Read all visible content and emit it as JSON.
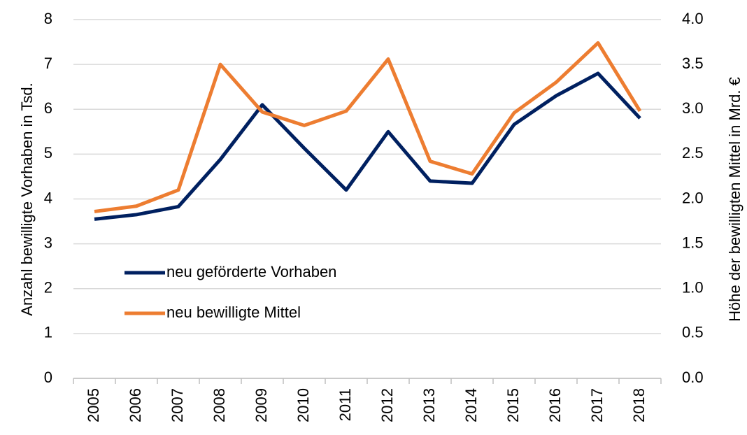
{
  "chart_data": {
    "type": "line",
    "categories": [
      "2005",
      "2006",
      "2007",
      "2008",
      "2009",
      "2010",
      "2011",
      "2012",
      "2013",
      "2014",
      "2015",
      "2016",
      "2017",
      "2018"
    ],
    "series": [
      {
        "name": "neu geförderte Vorhaben",
        "color": "#002060",
        "axis": "y",
        "values": [
          3.55,
          3.65,
          3.83,
          4.88,
          6.1,
          5.13,
          4.2,
          5.5,
          4.4,
          4.35,
          5.66,
          6.3,
          6.8,
          5.8
        ]
      },
      {
        "name": "neu bewilligte Mittel",
        "color": "#ED7D31",
        "axis": "y2",
        "values": [
          1.86,
          1.92,
          2.1,
          3.5,
          2.97,
          2.82,
          2.98,
          3.56,
          2.42,
          2.28,
          2.96,
          3.3,
          3.74,
          2.98
        ]
      }
    ],
    "ylabel": "Anzahl bewilligte Vorhaben in Tsd.",
    "y2label": "Höhe der bewilligten Mittel in Mrd. €",
    "ylim": [
      0,
      8
    ],
    "yticks": [
      0,
      1,
      2,
      3,
      4,
      5,
      6,
      7,
      8
    ],
    "y2lim": [
      0,
      4
    ],
    "y2ticks": [
      {
        "value": 0,
        "label": "0.0"
      },
      0.5,
      {
        "value": 1,
        "label": "1.0"
      },
      1.5,
      {
        "value": 2,
        "label": "2.0"
      },
      2.5,
      {
        "value": 3,
        "label": "3.0"
      },
      3.5,
      {
        "value": 4,
        "label": "4.0"
      }
    ],
    "grid": true,
    "legend": "center-left"
  }
}
